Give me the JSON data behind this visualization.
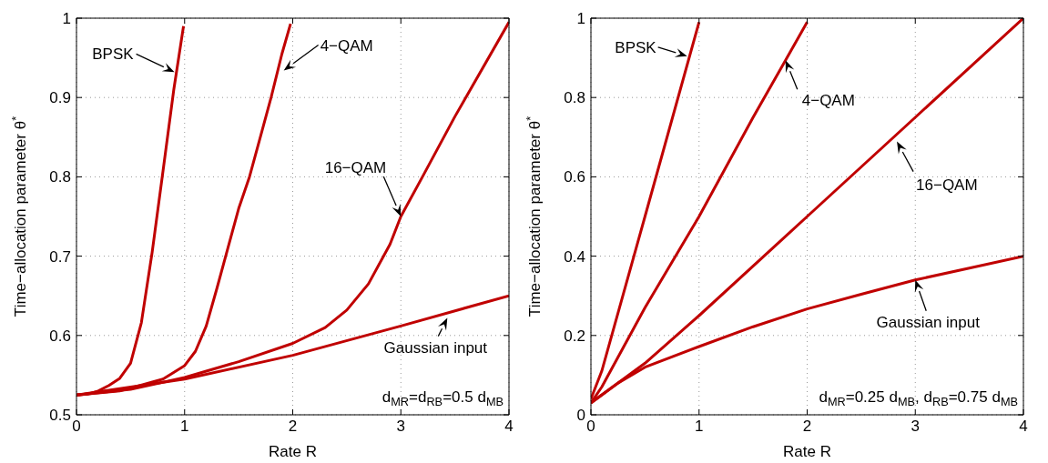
{
  "chart_data": [
    {
      "type": "line",
      "xlabel": "Rate R",
      "ylabel": "Time−allocation parameter θ$^{*}$",
      "xlim": [
        0,
        4
      ],
      "ylim": [
        0.5,
        1
      ],
      "xticks": [
        0,
        1,
        2,
        3,
        4
      ],
      "yticks": [
        {
          "value": 0.5,
          "label": "0.5"
        },
        {
          "value": 0.6,
          "label": "0.6"
        },
        {
          "value": 0.7,
          "label": "0.7"
        },
        {
          "value": 0.8,
          "label": "0.8"
        },
        {
          "value": 0.9,
          "label": "0.9"
        },
        1
      ],
      "grid": true,
      "line_style": "solid",
      "marker": "none",
      "series": [
        {
          "color": "#c00000",
          "x": [
            0,
            0.1,
            0.2,
            0.3,
            0.4,
            0.5,
            0.6,
            0.7,
            0.8,
            0.9,
            0.99
          ],
          "values": [
            0.525,
            0.526,
            0.53,
            0.537,
            0.546,
            0.565,
            0.616,
            0.705,
            0.807,
            0.91,
            0.99
          ]
        },
        {
          "color": "#c00000",
          "x": [
            0,
            0.4,
            0.8,
            1,
            1.1,
            1.2,
            1.3,
            1.4,
            1.5,
            1.6,
            1.7,
            1.8,
            1.9,
            1.98
          ],
          "values": [
            0.525,
            0.53,
            0.545,
            0.562,
            0.58,
            0.612,
            0.66,
            0.71,
            0.76,
            0.8,
            0.85,
            0.9,
            0.955,
            0.993
          ]
        },
        {
          "color": "#c00000",
          "x": [
            0,
            0.5,
            1,
            1.5,
            2,
            2.3,
            2.5,
            2.7,
            2.9,
            3,
            3.2,
            3.5,
            4
          ],
          "values": [
            0.525,
            0.532,
            0.547,
            0.567,
            0.59,
            0.61,
            0.632,
            0.665,
            0.715,
            0.75,
            0.8,
            0.876,
            0.995
          ]
        },
        {
          "color": "#c00000",
          "x": [
            0,
            1,
            2,
            3,
            4
          ],
          "values": [
            0.525,
            0.545,
            0.575,
            0.612,
            0.65
          ]
        }
      ],
      "annotations": [
        {
          "text": "BPSK",
          "x": 0.906,
          "y": 0.932
        },
        {
          "text": "4−QAM",
          "x": 1.917,
          "y": 0.934
        },
        {
          "text": "16−QAM",
          "x": 3,
          "y": 0.75
        },
        {
          "text": "Gaussian input",
          "x": 3.43,
          "y": 0.622
        },
        "d$_{MR}$=d$_{RB}$=0.5 d$_{MB}$"
      ]
    },
    {
      "type": "line",
      "xlabel": "Rate R",
      "ylabel": "Time−allocation parameter θ$^{*}$",
      "xlim": [
        0,
        4
      ],
      "ylim": [
        0,
        1
      ],
      "xticks": [
        0,
        1,
        2,
        3,
        4
      ],
      "yticks": [
        0,
        0.2,
        0.4,
        0.6,
        0.8,
        1
      ],
      "grid": true,
      "line_style": "solid",
      "marker": "none",
      "series": [
        {
          "color": "#c00000",
          "x": [
            0,
            0.1,
            0.5,
            1
          ],
          "values": [
            0.04,
            0.11,
            0.5,
            0.99
          ]
        },
        {
          "color": "#c00000",
          "x": [
            0,
            0.1,
            0.5,
            1,
            1.5,
            1.8,
            2
          ],
          "values": [
            0.03,
            0.07,
            0.27,
            0.5,
            0.75,
            0.894,
            0.99
          ]
        },
        {
          "color": "#c00000",
          "x": [
            0,
            0.5,
            1,
            2,
            3,
            4
          ],
          "values": [
            0.03,
            0.13,
            0.25,
            0.5,
            0.75,
            1
          ]
        },
        {
          "color": "#c00000",
          "x": [
            0,
            0.25,
            0.5,
            1,
            1.5,
            2,
            2.5,
            3,
            3.5,
            4
          ],
          "values": [
            0.03,
            0.08,
            0.12,
            0.172,
            0.222,
            0.267,
            0.304,
            0.34,
            0.37,
            0.4
          ]
        }
      ],
      "annotations": [
        {
          "text": "BPSK",
          "x": 0.89,
          "y": 0.904
        },
        {
          "text": "4−QAM",
          "x": 1.8,
          "y": 0.894
        },
        {
          "text": "16−QAM",
          "x": 2.83,
          "y": 0.689
        },
        {
          "text": "Gaussian input",
          "x": 3,
          "y": 0.34
        },
        "d$_{MR}$=0.25 d$_{MB}$,  d$_{RB}$=0.75 d$_{MB}$"
      ]
    }
  ]
}
